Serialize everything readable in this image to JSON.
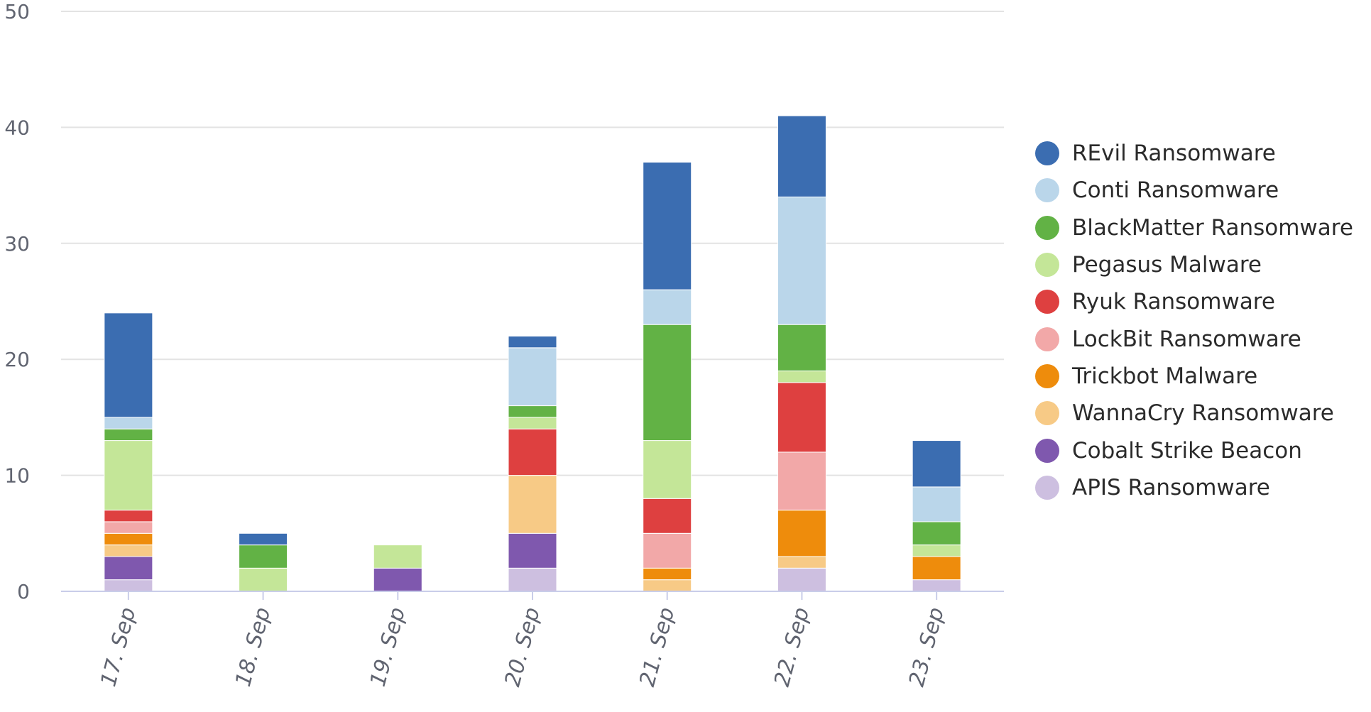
{
  "chart_data": {
    "type": "bar",
    "stacked": true,
    "categories": [
      "17. Sep",
      "18. Sep",
      "19. Sep",
      "20. Sep",
      "21. Sep",
      "22. Sep",
      "23. Sep"
    ],
    "ylim": [
      0,
      50
    ],
    "yticks": [
      "0",
      "10",
      "20",
      "30",
      "40",
      "50"
    ],
    "grid": true,
    "legend_position": "right",
    "series": [
      {
        "name": "APIS Ransomware",
        "color": "#cdbfe0",
        "values": [
          1,
          0,
          0,
          2,
          0,
          2,
          1
        ]
      },
      {
        "name": "Cobalt Strike Beacon",
        "color": "#7f58ae",
        "values": [
          2,
          0,
          2,
          3,
          0,
          0,
          0
        ]
      },
      {
        "name": "WannaCry Ransomware",
        "color": "#f7ca86",
        "values": [
          1,
          0,
          0,
          5,
          1,
          1,
          0
        ]
      },
      {
        "name": "Trickbot Malware",
        "color": "#ee8c0c",
        "values": [
          1,
          0,
          0,
          0,
          1,
          4,
          2
        ]
      },
      {
        "name": "LockBit Ransomware",
        "color": "#f2a8a8",
        "values": [
          1,
          0,
          0,
          0,
          3,
          5,
          0
        ]
      },
      {
        "name": "Ryuk Ransomware",
        "color": "#de4040",
        "values": [
          1,
          0,
          0,
          4,
          3,
          6,
          0
        ]
      },
      {
        "name": "Pegasus Malware",
        "color": "#c4e698",
        "values": [
          6,
          2,
          2,
          1,
          5,
          1,
          1
        ]
      },
      {
        "name": "BlackMatter Ransomware",
        "color": "#62b245",
        "values": [
          1,
          2,
          0,
          1,
          10,
          4,
          2
        ]
      },
      {
        "name": "Conti Ransomware",
        "color": "#bad6ea",
        "values": [
          1,
          0,
          0,
          5,
          3,
          11,
          3
        ]
      },
      {
        "name": "REvil Ransomware",
        "color": "#3b6db1",
        "values": [
          9,
          1,
          0,
          1,
          11,
          7,
          4
        ]
      }
    ],
    "legend_order": [
      "REvil Ransomware",
      "Conti Ransomware",
      "BlackMatter Ransomware",
      "Pegasus Malware",
      "Ryuk Ransomware",
      "LockBit Ransomware",
      "Trickbot Malware",
      "WannaCry Ransomware",
      "Cobalt Strike Beacon",
      "APIS Ransomware"
    ]
  }
}
